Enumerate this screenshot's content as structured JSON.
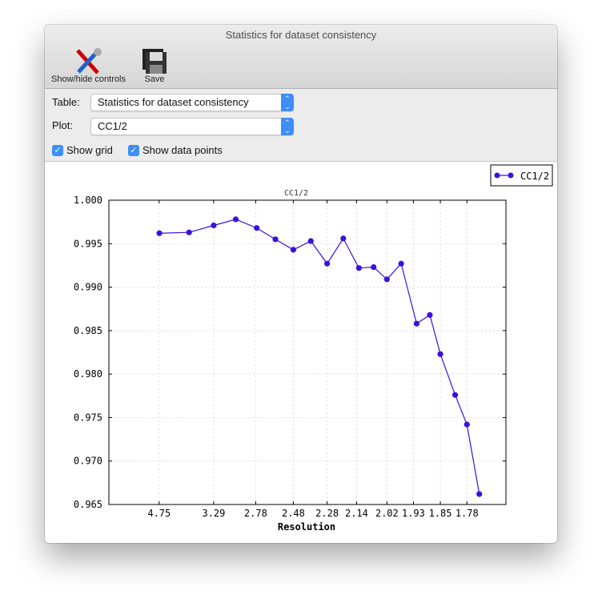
{
  "window": {
    "title": "Statistics for dataset consistency",
    "traffic_lights": {
      "close": "#fc5f57",
      "minimize": "#fdbc2e",
      "zoom": "#33c748"
    }
  },
  "toolbar": {
    "items": [
      {
        "label": "Show/hide controls",
        "icon": "tools-icon"
      },
      {
        "label": "Save",
        "icon": "floppy-disk-icon"
      }
    ]
  },
  "controls": {
    "table_label": "Table:",
    "table_value": "Statistics for dataset consistency",
    "plot_label": "Plot:",
    "plot_value": "CC1/2",
    "show_grid_label": "Show grid",
    "show_grid": true,
    "show_points_label": "Show data points",
    "show_points": true
  },
  "chart_data": {
    "type": "line",
    "title": "CC1/2",
    "xlabel": "Resolution",
    "ylabel": "",
    "x_scale": "1/d^2",
    "legend": {
      "entries": [
        "CC1/2"
      ],
      "placement": "top-right"
    },
    "grid": true,
    "color": "#3b10e0",
    "xticks": [
      "4.75",
      "3.29",
      "2.78",
      "2.48",
      "2.28",
      "2.14",
      "2.02",
      "1.93",
      "1.85",
      "1.78"
    ],
    "yticks": [
      "1.000",
      "0.995",
      "0.990",
      "0.985",
      "0.980",
      "0.975",
      "0.970",
      "0.965"
    ],
    "ylim": [
      0.965,
      1.0
    ],
    "xlim_inv_d2": [
      0,
      0.35
    ],
    "series": [
      {
        "name": "CC1/2",
        "x": [
          4.74,
          3.76,
          3.29,
          2.99,
          2.77,
          2.61,
          2.48,
          2.37,
          2.28,
          2.2,
          2.13,
          2.07,
          2.02,
          1.97,
          1.92,
          1.88,
          1.85,
          1.81,
          1.78,
          1.75
        ],
        "y": [
          0.9962,
          0.9963,
          0.9971,
          0.9978,
          0.9968,
          0.9955,
          0.9943,
          0.9953,
          0.9927,
          0.9956,
          0.9922,
          0.9923,
          0.9909,
          0.9927,
          0.9858,
          0.9868,
          0.9823,
          0.9776,
          0.9742,
          0.9662
        ]
      }
    ]
  }
}
